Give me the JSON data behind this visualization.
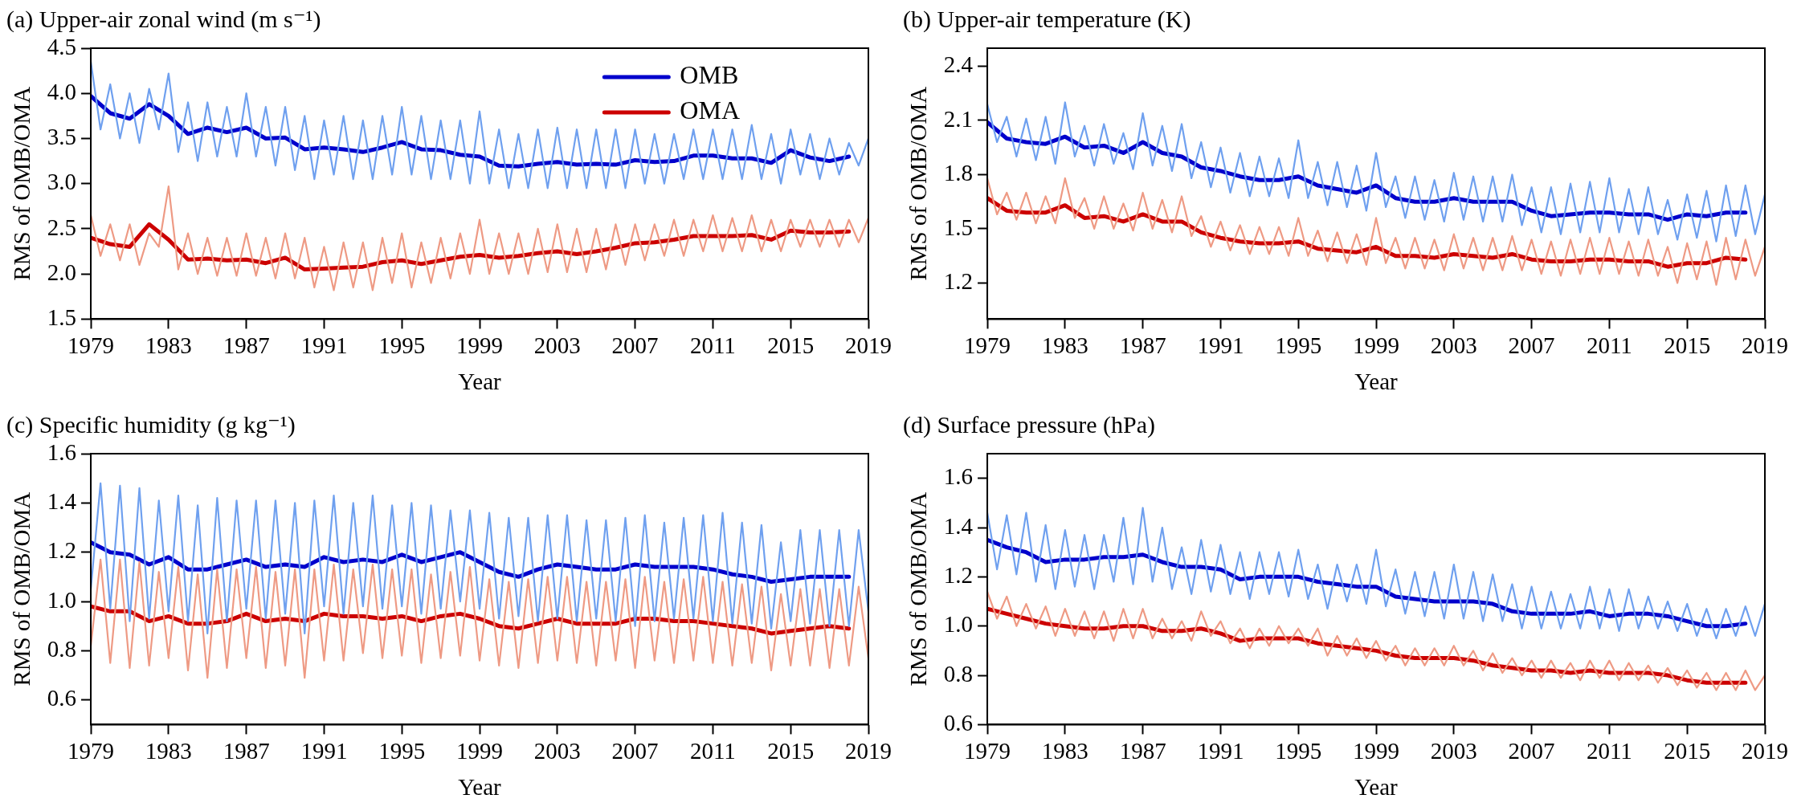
{
  "chart_data": [
    {
      "type": "line",
      "title": "(a) Upper-air zonal wind (m s⁻¹)",
      "xlabel": "Year",
      "ylabel": "RMS of OMB/OMA",
      "legend": "top right",
      "xlim": [
        1979,
        2019
      ],
      "xticks": [
        1979,
        1983,
        1987,
        1991,
        1995,
        1999,
        2003,
        2007,
        2011,
        2015,
        2019
      ],
      "ylim": [
        1.5,
        4.5
      ],
      "yticks": [
        1.5,
        {
          "value": 2,
          "label": "2.0"
        },
        2.5,
        {
          "value": 3,
          "label": "3.0"
        },
        3.5,
        {
          "value": 4,
          "label": "4.0"
        },
        4.5
      ],
      "x": [
        1979,
        1979.5,
        1980,
        1980.5,
        1981,
        1981.5,
        1982,
        1982.5,
        1983,
        1983.5,
        1984,
        1984.5,
        1985,
        1985.5,
        1986,
        1986.5,
        1987,
        1987.5,
        1988,
        1988.5,
        1989,
        1989.5,
        1990,
        1990.5,
        1991,
        1991.5,
        1992,
        1992.5,
        1993,
        1993.5,
        1994,
        1994.5,
        1995,
        1995.5,
        1996,
        1996.5,
        1997,
        1997.5,
        1998,
        1998.5,
        1999,
        1999.5,
        2000,
        2000.5,
        2001,
        2001.5,
        2002,
        2002.5,
        2003,
        2003.5,
        2004,
        2004.5,
        2005,
        2005.5,
        2006,
        2006.5,
        2007,
        2007.5,
        2008,
        2008.5,
        2009,
        2009.5,
        2010,
        2010.5,
        2011,
        2011.5,
        2012,
        2012.5,
        2013,
        2013.5,
        2014,
        2014.5,
        2015,
        2015.5,
        2016,
        2016.5,
        2017,
        2017.5,
        2018,
        2018.5,
        2019
      ],
      "series": [
        {
          "color": "#6fa0ef",
          "values": [
            4.35,
            3.6,
            4.1,
            3.5,
            4.0,
            3.45,
            4.05,
            3.6,
            4.22,
            3.35,
            3.9,
            3.25,
            3.9,
            3.3,
            3.85,
            3.3,
            4.0,
            3.3,
            3.85,
            3.2,
            3.85,
            3.15,
            3.75,
            3.05,
            3.7,
            3.1,
            3.75,
            3.05,
            3.7,
            3.05,
            3.75,
            3.1,
            3.85,
            3.1,
            3.75,
            3.05,
            3.7,
            3.05,
            3.7,
            3.0,
            3.8,
            3.0,
            3.6,
            2.95,
            3.55,
            2.95,
            3.6,
            2.95,
            3.62,
            2.95,
            3.6,
            2.95,
            3.6,
            2.95,
            3.6,
            2.95,
            3.6,
            3.0,
            3.55,
            3.0,
            3.55,
            3.05,
            3.6,
            3.05,
            3.6,
            3.05,
            3.6,
            3.05,
            3.65,
            3.05,
            3.55,
            3.0,
            3.6,
            3.1,
            3.55,
            3.05,
            3.5,
            3.1,
            3.45,
            3.2,
            3.5
          ]
        },
        {
          "color": "#ee9a84",
          "values": [
            2.65,
            2.2,
            2.55,
            2.15,
            2.55,
            2.1,
            2.45,
            2.3,
            2.97,
            2.05,
            2.45,
            2.0,
            2.4,
            1.98,
            2.4,
            1.98,
            2.45,
            1.98,
            2.4,
            1.95,
            2.45,
            1.95,
            2.4,
            1.85,
            2.3,
            1.82,
            2.35,
            1.85,
            2.35,
            1.82,
            2.4,
            1.9,
            2.45,
            1.85,
            2.35,
            1.9,
            2.4,
            1.95,
            2.45,
            2.0,
            2.6,
            2.0,
            2.45,
            2.0,
            2.45,
            2.0,
            2.5,
            2.02,
            2.55,
            2.02,
            2.5,
            2.02,
            2.5,
            2.05,
            2.55,
            2.1,
            2.55,
            2.15,
            2.55,
            2.2,
            2.6,
            2.2,
            2.6,
            2.25,
            2.65,
            2.25,
            2.62,
            2.25,
            2.65,
            2.25,
            2.6,
            2.25,
            2.6,
            2.3,
            2.6,
            2.3,
            2.6,
            2.3,
            2.6,
            2.35,
            2.62
          ]
        },
        {
          "name": "OMB",
          "color": "#0000cc",
          "x": [
            1979,
            1980,
            1981,
            1982,
            1983,
            1984,
            1985,
            1986,
            1987,
            1988,
            1989,
            1990,
            1991,
            1992,
            1993,
            1994,
            1995,
            1996,
            1997,
            1998,
            1999,
            2000,
            2001,
            2002,
            2003,
            2004,
            2005,
            2006,
            2007,
            2008,
            2009,
            2010,
            2011,
            2012,
            2013,
            2014,
            2015,
            2016,
            2017,
            2018
          ],
          "values": [
            3.97,
            3.78,
            3.72,
            3.88,
            3.75,
            3.55,
            3.62,
            3.57,
            3.62,
            3.5,
            3.51,
            3.38,
            3.4,
            3.38,
            3.35,
            3.4,
            3.46,
            3.38,
            3.37,
            3.32,
            3.3,
            3.2,
            3.19,
            3.22,
            3.24,
            3.21,
            3.22,
            3.21,
            3.26,
            3.24,
            3.25,
            3.31,
            3.31,
            3.28,
            3.28,
            3.23,
            3.37,
            3.29,
            3.25,
            3.3
          ]
        },
        {
          "name": "OMA",
          "color": "#cc0000",
          "x": [
            1979,
            1980,
            1981,
            1982,
            1983,
            1984,
            1985,
            1986,
            1987,
            1988,
            1989,
            1990,
            1991,
            1992,
            1993,
            1994,
            1995,
            1996,
            1997,
            1998,
            1999,
            2000,
            2001,
            2002,
            2003,
            2004,
            2005,
            2006,
            2007,
            2008,
            2009,
            2010,
            2011,
            2012,
            2013,
            2014,
            2015,
            2016,
            2017,
            2018
          ],
          "values": [
            2.4,
            2.33,
            2.3,
            2.55,
            2.38,
            2.16,
            2.17,
            2.15,
            2.16,
            2.12,
            2.18,
            2.05,
            2.06,
            2.07,
            2.08,
            2.13,
            2.15,
            2.11,
            2.15,
            2.19,
            2.21,
            2.18,
            2.2,
            2.23,
            2.25,
            2.22,
            2.25,
            2.29,
            2.34,
            2.35,
            2.38,
            2.42,
            2.42,
            2.42,
            2.43,
            2.38,
            2.48,
            2.46,
            2.46,
            2.47
          ]
        }
      ]
    },
    {
      "type": "line",
      "title": "(b) Upper-air temperature (K)",
      "xlabel": "Year",
      "ylabel": "RMS of OMB/OMA",
      "xlim": [
        1979,
        2019
      ],
      "xticks": [
        1979,
        1983,
        1987,
        1991,
        1995,
        1999,
        2003,
        2007,
        2011,
        2015,
        2019
      ],
      "ylim": [
        1.0,
        2.5
      ],
      "yticks": [
        1.2,
        1.5,
        1.8,
        2.1,
        2.4
      ],
      "x": [
        1979,
        1979.5,
        1980,
        1980.5,
        1981,
        1981.5,
        1982,
        1982.5,
        1983,
        1983.5,
        1984,
        1984.5,
        1985,
        1985.5,
        1986,
        1986.5,
        1987,
        1987.5,
        1988,
        1988.5,
        1989,
        1989.5,
        1990,
        1990.5,
        1991,
        1991.5,
        1992,
        1992.5,
        1993,
        1993.5,
        1994,
        1994.5,
        1995,
        1995.5,
        1996,
        1996.5,
        1997,
        1997.5,
        1998,
        1998.5,
        1999,
        1999.5,
        2000,
        2000.5,
        2001,
        2001.5,
        2002,
        2002.5,
        2003,
        2003.5,
        2004,
        2004.5,
        2005,
        2005.5,
        2006,
        2006.5,
        2007,
        2007.5,
        2008,
        2008.5,
        2009,
        2009.5,
        2010,
        2010.5,
        2011,
        2011.5,
        2012,
        2012.5,
        2013,
        2013.5,
        2014,
        2014.5,
        2015,
        2015.5,
        2016,
        2016.5,
        2017,
        2017.5,
        2018,
        2018.5,
        2019
      ],
      "series": [
        {
          "color": "#6fa0ef",
          "values": [
            2.19,
            1.98,
            2.12,
            1.9,
            2.11,
            1.88,
            2.12,
            1.86,
            2.2,
            1.9,
            2.07,
            1.85,
            2.08,
            1.86,
            2.03,
            1.83,
            2.14,
            1.85,
            2.07,
            1.82,
            2.08,
            1.78,
            1.98,
            1.73,
            1.95,
            1.7,
            1.92,
            1.68,
            1.9,
            1.68,
            1.89,
            1.67,
            1.99,
            1.67,
            1.87,
            1.63,
            1.87,
            1.62,
            1.85,
            1.6,
            1.92,
            1.62,
            1.79,
            1.56,
            1.79,
            1.55,
            1.77,
            1.54,
            1.81,
            1.55,
            1.79,
            1.54,
            1.79,
            1.54,
            1.8,
            1.52,
            1.73,
            1.48,
            1.73,
            1.47,
            1.75,
            1.48,
            1.76,
            1.48,
            1.78,
            1.48,
            1.72,
            1.47,
            1.73,
            1.47,
            1.66,
            1.44,
            1.69,
            1.45,
            1.71,
            1.43,
            1.74,
            1.46,
            1.74,
            1.47,
            1.69
          ]
        },
        {
          "color": "#ee9a84",
          "values": [
            1.78,
            1.58,
            1.7,
            1.55,
            1.7,
            1.53,
            1.68,
            1.53,
            1.78,
            1.56,
            1.67,
            1.5,
            1.68,
            1.5,
            1.64,
            1.49,
            1.7,
            1.5,
            1.66,
            1.48,
            1.68,
            1.46,
            1.57,
            1.4,
            1.54,
            1.38,
            1.52,
            1.36,
            1.51,
            1.36,
            1.51,
            1.35,
            1.56,
            1.35,
            1.49,
            1.32,
            1.48,
            1.31,
            1.47,
            1.3,
            1.56,
            1.31,
            1.45,
            1.28,
            1.45,
            1.28,
            1.44,
            1.27,
            1.47,
            1.28,
            1.45,
            1.27,
            1.45,
            1.27,
            1.46,
            1.27,
            1.44,
            1.25,
            1.43,
            1.24,
            1.44,
            1.25,
            1.45,
            1.25,
            1.45,
            1.25,
            1.43,
            1.24,
            1.44,
            1.24,
            1.4,
            1.2,
            1.42,
            1.22,
            1.43,
            1.19,
            1.45,
            1.22,
            1.44,
            1.24,
            1.4
          ]
        },
        {
          "color": "#0000cc",
          "x": [
            1979,
            1980,
            1981,
            1982,
            1983,
            1984,
            1985,
            1986,
            1987,
            1988,
            1989,
            1990,
            1991,
            1992,
            1993,
            1994,
            1995,
            1996,
            1997,
            1998,
            1999,
            2000,
            2001,
            2002,
            2003,
            2004,
            2005,
            2006,
            2007,
            2008,
            2009,
            2010,
            2011,
            2012,
            2013,
            2014,
            2015,
            2016,
            2017,
            2018
          ],
          "values": [
            2.09,
            2.0,
            1.98,
            1.97,
            2.01,
            1.95,
            1.96,
            1.92,
            1.98,
            1.92,
            1.9,
            1.84,
            1.82,
            1.79,
            1.77,
            1.77,
            1.79,
            1.74,
            1.72,
            1.7,
            1.74,
            1.67,
            1.65,
            1.65,
            1.67,
            1.65,
            1.65,
            1.65,
            1.6,
            1.57,
            1.58,
            1.59,
            1.59,
            1.58,
            1.58,
            1.55,
            1.58,
            1.57,
            1.59,
            1.59
          ]
        },
        {
          "color": "#cc0000",
          "x": [
            1979,
            1980,
            1981,
            1982,
            1983,
            1984,
            1985,
            1986,
            1987,
            1988,
            1989,
            1990,
            1991,
            1992,
            1993,
            1994,
            1995,
            1996,
            1997,
            1998,
            1999,
            2000,
            2001,
            2002,
            2003,
            2004,
            2005,
            2006,
            2007,
            2008,
            2009,
            2010,
            2011,
            2012,
            2013,
            2014,
            2015,
            2016,
            2017,
            2018
          ],
          "values": [
            1.67,
            1.6,
            1.59,
            1.59,
            1.63,
            1.56,
            1.57,
            1.54,
            1.58,
            1.54,
            1.54,
            1.48,
            1.45,
            1.43,
            1.42,
            1.42,
            1.43,
            1.39,
            1.38,
            1.37,
            1.4,
            1.35,
            1.35,
            1.34,
            1.36,
            1.35,
            1.34,
            1.36,
            1.33,
            1.32,
            1.32,
            1.33,
            1.33,
            1.32,
            1.32,
            1.29,
            1.31,
            1.31,
            1.34,
            1.33
          ]
        }
      ]
    },
    {
      "type": "line",
      "title": "(c) Specific humidity (g kg⁻¹)",
      "xlabel": "Year",
      "ylabel": "RMS of OMB/OMA",
      "xlim": [
        1979,
        2019
      ],
      "xticks": [
        1979,
        1983,
        1987,
        1991,
        1995,
        1999,
        2003,
        2007,
        2011,
        2015,
        2019
      ],
      "ylim": [
        0.5,
        1.6
      ],
      "yticks": [
        0.6,
        0.8,
        {
          "value": 1,
          "label": "1.0"
        },
        1.2,
        1.4,
        1.6
      ],
      "x": [
        1979,
        1979.5,
        1980,
        1980.5,
        1981,
        1981.5,
        1982,
        1982.5,
        1983,
        1983.5,
        1984,
        1984.5,
        1985,
        1985.5,
        1986,
        1986.5,
        1987,
        1987.5,
        1988,
        1988.5,
        1989,
        1989.5,
        1990,
        1990.5,
        1991,
        1991.5,
        1992,
        1992.5,
        1993,
        1993.5,
        1994,
        1994.5,
        1995,
        1995.5,
        1996,
        1996.5,
        1997,
        1997.5,
        1998,
        1998.5,
        1999,
        1999.5,
        2000,
        2000.5,
        2001,
        2001.5,
        2002,
        2002.5,
        2003,
        2003.5,
        2004,
        2004.5,
        2005,
        2005.5,
        2006,
        2006.5,
        2007,
        2007.5,
        2008,
        2008.5,
        2009,
        2009.5,
        2010,
        2010.5,
        2011,
        2011.5,
        2012,
        2012.5,
        2013,
        2013.5,
        2014,
        2014.5,
        2015,
        2015.5,
        2016,
        2016.5,
        2017,
        2017.5,
        2018,
        2018.5,
        2019
      ],
      "series": [
        {
          "color": "#6fa0ef",
          "values": [
            1.05,
            1.48,
            0.97,
            1.47,
            0.92,
            1.46,
            0.93,
            1.41,
            0.96,
            1.43,
            0.92,
            1.39,
            0.87,
            1.42,
            0.92,
            1.41,
            0.97,
            1.41,
            0.93,
            1.41,
            0.95,
            1.4,
            0.87,
            1.41,
            0.98,
            1.43,
            0.95,
            1.4,
            0.98,
            1.43,
            0.97,
            1.39,
            0.98,
            1.4,
            0.95,
            1.39,
            0.97,
            1.37,
            1.0,
            1.37,
            0.97,
            1.36,
            0.93,
            1.34,
            0.94,
            1.34,
            0.92,
            1.35,
            0.93,
            1.35,
            0.92,
            1.33,
            0.93,
            1.33,
            0.92,
            1.34,
            0.9,
            1.35,
            0.92,
            1.32,
            0.93,
            1.34,
            0.93,
            1.35,
            0.92,
            1.36,
            0.91,
            1.32,
            0.91,
            1.31,
            0.89,
            1.24,
            0.92,
            1.29,
            0.91,
            1.29,
            0.9,
            1.29,
            0.9,
            1.29,
            0.96
          ]
        },
        {
          "color": "#ee9a84",
          "values": [
            0.82,
            1.17,
            0.75,
            1.17,
            0.73,
            1.16,
            0.74,
            1.12,
            0.77,
            1.14,
            0.72,
            1.11,
            0.69,
            1.13,
            0.73,
            1.13,
            0.77,
            1.14,
            0.73,
            1.12,
            0.74,
            1.13,
            0.69,
            1.13,
            0.76,
            1.15,
            0.76,
            1.13,
            0.79,
            1.15,
            0.77,
            1.13,
            0.78,
            1.13,
            0.75,
            1.11,
            0.77,
            1.12,
            0.78,
            1.14,
            0.76,
            1.09,
            0.74,
            1.08,
            0.73,
            1.09,
            0.75,
            1.1,
            0.76,
            1.1,
            0.75,
            1.08,
            0.74,
            1.08,
            0.76,
            1.09,
            0.73,
            1.1,
            0.76,
            1.08,
            0.75,
            1.09,
            0.76,
            1.1,
            0.75,
            1.08,
            0.74,
            1.07,
            0.75,
            1.06,
            0.72,
            1.03,
            0.74,
            1.05,
            0.74,
            1.05,
            0.73,
            1.05,
            0.74,
            1.06,
            0.77
          ]
        },
        {
          "color": "#0000cc",
          "x": [
            1979,
            1980,
            1981,
            1982,
            1983,
            1984,
            1985,
            1986,
            1987,
            1988,
            1989,
            1990,
            1991,
            1992,
            1993,
            1994,
            1995,
            1996,
            1997,
            1998,
            1999,
            2000,
            2001,
            2002,
            2003,
            2004,
            2005,
            2006,
            2007,
            2008,
            2009,
            2010,
            2011,
            2012,
            2013,
            2014,
            2015,
            2016,
            2017,
            2018
          ],
          "values": [
            1.24,
            1.2,
            1.19,
            1.15,
            1.18,
            1.13,
            1.13,
            1.15,
            1.17,
            1.14,
            1.15,
            1.14,
            1.18,
            1.16,
            1.17,
            1.16,
            1.19,
            1.16,
            1.18,
            1.2,
            1.16,
            1.12,
            1.1,
            1.13,
            1.15,
            1.14,
            1.13,
            1.13,
            1.15,
            1.14,
            1.14,
            1.14,
            1.13,
            1.11,
            1.1,
            1.08,
            1.09,
            1.1,
            1.1,
            1.1
          ]
        },
        {
          "color": "#cc0000",
          "x": [
            1979,
            1980,
            1981,
            1982,
            1983,
            1984,
            1985,
            1986,
            1987,
            1988,
            1989,
            1990,
            1991,
            1992,
            1993,
            1994,
            1995,
            1996,
            1997,
            1998,
            1999,
            2000,
            2001,
            2002,
            2003,
            2004,
            2005,
            2006,
            2007,
            2008,
            2009,
            2010,
            2011,
            2012,
            2013,
            2014,
            2015,
            2016,
            2017,
            2018
          ],
          "values": [
            0.98,
            0.96,
            0.96,
            0.92,
            0.94,
            0.91,
            0.91,
            0.92,
            0.95,
            0.92,
            0.93,
            0.92,
            0.95,
            0.94,
            0.94,
            0.93,
            0.94,
            0.92,
            0.94,
            0.95,
            0.93,
            0.9,
            0.89,
            0.91,
            0.93,
            0.91,
            0.91,
            0.91,
            0.93,
            0.93,
            0.92,
            0.92,
            0.91,
            0.9,
            0.89,
            0.87,
            0.88,
            0.89,
            0.9,
            0.89
          ]
        }
      ]
    },
    {
      "type": "line",
      "title": "(d) Surface pressure (hPa)",
      "xlabel": "Year",
      "ylabel": "RMS of OMB/OMA",
      "xlim": [
        1979,
        2019
      ],
      "xticks": [
        1979,
        1983,
        1987,
        1991,
        1995,
        1999,
        2003,
        2007,
        2011,
        2015,
        2019
      ],
      "ylim": [
        0.6,
        1.7
      ],
      "yticks": [
        0.6,
        0.8,
        {
          "value": 1,
          "label": "1.0"
        },
        1.2,
        1.4,
        1.6
      ],
      "x": [
        1979,
        1979.5,
        1980,
        1980.5,
        1981,
        1981.5,
        1982,
        1982.5,
        1983,
        1983.5,
        1984,
        1984.5,
        1985,
        1985.5,
        1986,
        1986.5,
        1987,
        1987.5,
        1988,
        1988.5,
        1989,
        1989.5,
        1990,
        1990.5,
        1991,
        1991.5,
        1992,
        1992.5,
        1993,
        1993.5,
        1994,
        1994.5,
        1995,
        1995.5,
        1996,
        1996.5,
        1997,
        1997.5,
        1998,
        1998.5,
        1999,
        1999.5,
        2000,
        2000.5,
        2001,
        2001.5,
        2002,
        2002.5,
        2003,
        2003.5,
        2004,
        2004.5,
        2005,
        2005.5,
        2006,
        2006.5,
        2007,
        2007.5,
        2008,
        2008.5,
        2009,
        2009.5,
        2010,
        2010.5,
        2011,
        2011.5,
        2012,
        2012.5,
        2013,
        2013.5,
        2014,
        2014.5,
        2015,
        2015.5,
        2016,
        2016.5,
        2017,
        2017.5,
        2018,
        2018.5,
        2019
      ],
      "series": [
        {
          "color": "#6fa0ef",
          "values": [
            1.46,
            1.23,
            1.45,
            1.21,
            1.46,
            1.18,
            1.41,
            1.15,
            1.39,
            1.16,
            1.37,
            1.15,
            1.37,
            1.18,
            1.44,
            1.17,
            1.48,
            1.18,
            1.4,
            1.15,
            1.32,
            1.13,
            1.35,
            1.14,
            1.33,
            1.13,
            1.3,
            1.11,
            1.3,
            1.13,
            1.3,
            1.12,
            1.31,
            1.11,
            1.25,
            1.07,
            1.25,
            1.1,
            1.25,
            1.09,
            1.31,
            1.08,
            1.23,
            1.05,
            1.22,
            1.04,
            1.22,
            1.03,
            1.25,
            1.03,
            1.22,
            1.02,
            1.21,
            1.02,
            1.17,
            0.99,
            1.16,
            0.99,
            1.14,
            0.99,
            1.13,
            0.99,
            1.16,
            0.99,
            1.15,
            0.98,
            1.15,
            0.99,
            1.12,
            0.99,
            1.1,
            0.98,
            1.09,
            0.96,
            1.07,
            0.95,
            1.07,
            0.96,
            1.08,
            0.96,
            1.09
          ]
        },
        {
          "color": "#ee9a84",
          "values": [
            1.14,
            1.03,
            1.12,
            1.0,
            1.09,
            0.99,
            1.08,
            0.96,
            1.07,
            0.96,
            1.06,
            0.95,
            1.06,
            0.94,
            1.07,
            0.95,
            1.07,
            0.95,
            1.03,
            0.95,
            1.02,
            0.94,
            1.06,
            0.96,
            1.02,
            0.93,
            0.99,
            0.91,
            0.99,
            0.92,
            1.0,
            0.93,
            0.99,
            0.92,
            0.99,
            0.88,
            0.96,
            0.88,
            0.95,
            0.87,
            0.94,
            0.86,
            0.92,
            0.84,
            0.91,
            0.84,
            0.91,
            0.84,
            0.92,
            0.84,
            0.9,
            0.82,
            0.89,
            0.81,
            0.87,
            0.8,
            0.86,
            0.79,
            0.86,
            0.79,
            0.85,
            0.78,
            0.86,
            0.79,
            0.86,
            0.78,
            0.85,
            0.78,
            0.84,
            0.77,
            0.83,
            0.76,
            0.82,
            0.75,
            0.81,
            0.74,
            0.81,
            0.74,
            0.82,
            0.74,
            0.8
          ]
        },
        {
          "color": "#0000cc",
          "x": [
            1979,
            1980,
            1981,
            1982,
            1983,
            1984,
            1985,
            1986,
            1987,
            1988,
            1989,
            1990,
            1991,
            1992,
            1993,
            1994,
            1995,
            1996,
            1997,
            1998,
            1999,
            2000,
            2001,
            2002,
            2003,
            2004,
            2005,
            2006,
            2007,
            2008,
            2009,
            2010,
            2011,
            2012,
            2013,
            2014,
            2015,
            2016,
            2017,
            2018
          ],
          "values": [
            1.35,
            1.32,
            1.3,
            1.26,
            1.27,
            1.27,
            1.28,
            1.28,
            1.29,
            1.26,
            1.24,
            1.24,
            1.23,
            1.19,
            1.2,
            1.2,
            1.2,
            1.18,
            1.17,
            1.16,
            1.16,
            1.12,
            1.11,
            1.1,
            1.1,
            1.1,
            1.09,
            1.06,
            1.05,
            1.05,
            1.05,
            1.06,
            1.04,
            1.05,
            1.05,
            1.04,
            1.02,
            1.0,
            1.0,
            1.01
          ]
        },
        {
          "color": "#cc0000",
          "x": [
            1979,
            1980,
            1981,
            1982,
            1983,
            1984,
            1985,
            1986,
            1987,
            1988,
            1989,
            1990,
            1991,
            1992,
            1993,
            1994,
            1995,
            1996,
            1997,
            1998,
            1999,
            2000,
            2001,
            2002,
            2003,
            2004,
            2005,
            2006,
            2007,
            2008,
            2009,
            2010,
            2011,
            2012,
            2013,
            2014,
            2015,
            2016,
            2017,
            2018
          ],
          "values": [
            1.07,
            1.05,
            1.03,
            1.01,
            1.0,
            0.99,
            0.99,
            1.0,
            1.0,
            0.98,
            0.98,
            0.99,
            0.97,
            0.94,
            0.95,
            0.95,
            0.95,
            0.93,
            0.92,
            0.91,
            0.9,
            0.88,
            0.87,
            0.87,
            0.87,
            0.86,
            0.84,
            0.83,
            0.82,
            0.82,
            0.81,
            0.82,
            0.81,
            0.81,
            0.81,
            0.8,
            0.78,
            0.77,
            0.77,
            0.77
          ]
        }
      ]
    }
  ]
}
